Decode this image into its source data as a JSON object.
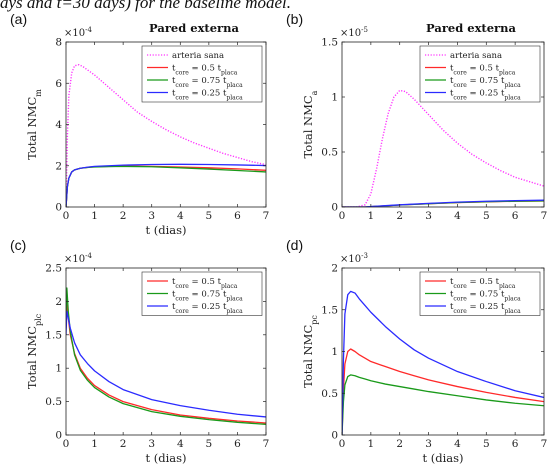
{
  "caption_fragment": "ays and t=30 days) for the baseline model.",
  "chart_data": [
    {
      "type": "line",
      "panel_letter": "(a)",
      "title": "Pared externa",
      "xlabel": "t (dias)",
      "ylabel": "Total NMC",
      "ylabel_sub": "m",
      "multiplier": "×10",
      "multiplier_exp": "-4",
      "xlim": [
        0,
        7
      ],
      "ylim": [
        0,
        8
      ],
      "xticks": [
        0,
        1,
        2,
        3,
        4,
        5,
        6,
        7
      ],
      "yticks": [
        0,
        2,
        4,
        6,
        8
      ],
      "legend_position": "top-right",
      "series": [
        {
          "name": "arteria sana",
          "color": "#ff33ff",
          "dash": "dotted",
          "x": [
            0,
            0.05,
            0.1,
            0.2,
            0.3,
            0.45,
            0.6,
            0.8,
            1,
            1.5,
            2,
            2.5,
            3,
            3.5,
            4,
            4.5,
            5,
            5.5,
            6,
            6.5,
            7
          ],
          "y": [
            0,
            3.5,
            5.4,
            6.5,
            6.85,
            6.9,
            6.8,
            6.6,
            6.4,
            5.8,
            5.2,
            4.6,
            4.15,
            3.75,
            3.4,
            3.1,
            2.85,
            2.6,
            2.4,
            2.2,
            2.05
          ]
        },
        {
          "name": "t_core = 0.5 t_placa",
          "color": "#ff2a2a",
          "dash": "solid",
          "x": [
            0,
            0.05,
            0.1,
            0.2,
            0.3,
            0.5,
            0.8,
            1,
            1.5,
            2,
            3,
            4,
            5,
            6,
            7
          ],
          "y": [
            0,
            1.0,
            1.4,
            1.7,
            1.8,
            1.88,
            1.93,
            1.95,
            1.97,
            1.98,
            1.97,
            1.94,
            1.9,
            1.85,
            1.78
          ]
        },
        {
          "name": "t_core = 0.75 t_placa",
          "color": "#1a9a1a",
          "dash": "solid",
          "x": [
            0,
            0.05,
            0.1,
            0.2,
            0.3,
            0.5,
            0.8,
            1,
            1.5,
            2,
            3,
            4,
            5,
            6,
            7
          ],
          "y": [
            0,
            1.0,
            1.4,
            1.7,
            1.8,
            1.88,
            1.92,
            1.94,
            1.96,
            1.97,
            1.95,
            1.9,
            1.84,
            1.77,
            1.7
          ]
        },
        {
          "name": "t_core = 0.25 t_placa",
          "color": "#2b2bff",
          "dash": "solid",
          "x": [
            0,
            0.05,
            0.1,
            0.2,
            0.3,
            0.5,
            0.8,
            1,
            1.5,
            2,
            3,
            4,
            5,
            6,
            7
          ],
          "y": [
            0,
            1.0,
            1.4,
            1.7,
            1.8,
            1.88,
            1.94,
            1.97,
            2.0,
            2.03,
            2.06,
            2.07,
            2.06,
            2.04,
            2.01
          ]
        }
      ]
    },
    {
      "type": "line",
      "panel_letter": "(b)",
      "title": "Pared externa",
      "xlabel": "",
      "ylabel": "Total NMC",
      "ylabel_sub": "a",
      "multiplier": "×10",
      "multiplier_exp": "-5",
      "xlim": [
        0,
        7
      ],
      "ylim": [
        0,
        1.5
      ],
      "xticks": [
        0,
        1,
        2,
        3,
        4,
        5,
        6,
        7
      ],
      "yticks": [
        0,
        0.5,
        1,
        1.5
      ],
      "legend_position": "top-right",
      "series": [
        {
          "name": "arteria sana",
          "color": "#ff33ff",
          "dash": "dotted",
          "x": [
            0,
            0.5,
            0.8,
            1,
            1.2,
            1.4,
            1.6,
            1.8,
            2,
            2.2,
            2.5,
            3,
            3.5,
            4,
            4.5,
            5,
            5.5,
            6,
            6.5,
            7
          ],
          "y": [
            0,
            0.0,
            0.02,
            0.12,
            0.35,
            0.62,
            0.85,
            1.0,
            1.06,
            1.05,
            0.98,
            0.84,
            0.7,
            0.58,
            0.48,
            0.4,
            0.33,
            0.27,
            0.23,
            0.19
          ]
        },
        {
          "name": "t_core = 0.5 t_placa",
          "color": "#ff2a2a",
          "dash": "solid",
          "x": [
            0,
            0.8,
            1,
            1.5,
            2,
            3,
            4,
            5,
            6,
            7
          ],
          "y": [
            0,
            0.0,
            0.003,
            0.01,
            0.018,
            0.03,
            0.04,
            0.047,
            0.052,
            0.055
          ]
        },
        {
          "name": "t_core = 0.75 t_placa",
          "color": "#1a9a1a",
          "dash": "solid",
          "x": [
            0,
            0.8,
            1,
            1.5,
            2,
            3,
            4,
            5,
            6,
            7
          ],
          "y": [
            0,
            0.0,
            0.003,
            0.01,
            0.018,
            0.03,
            0.041,
            0.048,
            0.053,
            0.056
          ]
        },
        {
          "name": "t_core = 0.25 t_placa",
          "color": "#2b2bff",
          "dash": "solid",
          "x": [
            0,
            0.8,
            1,
            1.5,
            2,
            3,
            4,
            5,
            6,
            7
          ],
          "y": [
            0,
            0.0,
            0.004,
            0.012,
            0.02,
            0.033,
            0.044,
            0.052,
            0.058,
            0.062
          ]
        }
      ]
    },
    {
      "type": "line",
      "panel_letter": "(c)",
      "title": "",
      "xlabel": "t (dias)",
      "ylabel": "Total NMC",
      "ylabel_sub": "plc",
      "multiplier": "×10",
      "multiplier_exp": "-4",
      "xlim": [
        0,
        7
      ],
      "ylim": [
        0,
        2.5
      ],
      "xticks": [
        0,
        1,
        2,
        3,
        4,
        5,
        6,
        7
      ],
      "yticks": [
        0,
        0.5,
        1,
        1.5,
        2,
        2.5
      ],
      "legend_position": "top-right",
      "series": [
        {
          "name": "t_core = 0.5 t_placa",
          "color": "#ff2a2a",
          "dash": "solid",
          "x": [
            0,
            0.03,
            0.08,
            0.15,
            0.3,
            0.5,
            0.75,
            1,
            1.5,
            2,
            3,
            4,
            5,
            6,
            7
          ],
          "y": [
            1.6,
            1.95,
            1.75,
            1.5,
            1.22,
            1.0,
            0.85,
            0.74,
            0.6,
            0.5,
            0.38,
            0.3,
            0.25,
            0.21,
            0.18
          ]
        },
        {
          "name": "t_core = 0.75 t_placa",
          "color": "#1a9a1a",
          "dash": "solid",
          "x": [
            0,
            0.03,
            0.08,
            0.15,
            0.3,
            0.5,
            0.75,
            1,
            1.5,
            2,
            3,
            4,
            5,
            6,
            7
          ],
          "y": [
            1.7,
            2.2,
            1.85,
            1.55,
            1.2,
            0.97,
            0.82,
            0.71,
            0.57,
            0.47,
            0.35,
            0.28,
            0.23,
            0.19,
            0.16
          ]
        },
        {
          "name": "t_core = 0.25 t_placa",
          "color": "#2b2bff",
          "dash": "solid",
          "x": [
            0,
            0.03,
            0.08,
            0.15,
            0.3,
            0.5,
            0.75,
            1,
            1.5,
            2,
            3,
            4,
            5,
            6,
            7
          ],
          "y": [
            1.5,
            1.85,
            1.75,
            1.6,
            1.38,
            1.2,
            1.07,
            0.96,
            0.8,
            0.68,
            0.53,
            0.44,
            0.37,
            0.31,
            0.27
          ]
        }
      ]
    },
    {
      "type": "line",
      "panel_letter": "(d)",
      "title": "",
      "xlabel": "t (dias)",
      "ylabel": "Total NMC",
      "ylabel_sub": "pc",
      "multiplier": "×10",
      "multiplier_exp": "-3",
      "xlim": [
        0,
        7
      ],
      "ylim": [
        0,
        2
      ],
      "xticks": [
        0,
        1,
        2,
        3,
        4,
        5,
        6,
        7
      ],
      "yticks": [
        0,
        0.5,
        1,
        1.5,
        2
      ],
      "legend_position": "top-right",
      "series": [
        {
          "name": "t_core = 0.5 t_placa",
          "color": "#ff2a2a",
          "dash": "solid",
          "x": [
            0,
            0.05,
            0.1,
            0.2,
            0.3,
            0.45,
            0.6,
            0.8,
            1,
            1.5,
            2,
            2.5,
            3,
            4,
            5,
            6,
            7
          ],
          "y": [
            0,
            0.55,
            0.85,
            1.0,
            1.03,
            1.0,
            0.96,
            0.92,
            0.88,
            0.82,
            0.76,
            0.71,
            0.66,
            0.58,
            0.51,
            0.45,
            0.4
          ]
        },
        {
          "name": "t_core = 0.75 t_placa",
          "color": "#1a9a1a",
          "dash": "solid",
          "x": [
            0,
            0.05,
            0.1,
            0.2,
            0.3,
            0.45,
            0.6,
            0.8,
            1,
            1.5,
            2,
            2.5,
            3,
            4,
            5,
            6,
            7
          ],
          "y": [
            0,
            0.4,
            0.6,
            0.7,
            0.72,
            0.71,
            0.69,
            0.67,
            0.65,
            0.61,
            0.58,
            0.55,
            0.52,
            0.47,
            0.42,
            0.38,
            0.35
          ]
        },
        {
          "name": "t_core = 0.25 t_placa",
          "color": "#2b2bff",
          "dash": "solid",
          "x": [
            0,
            0.05,
            0.1,
            0.2,
            0.3,
            0.45,
            0.6,
            0.8,
            1,
            1.5,
            2,
            2.5,
            3,
            4,
            5,
            6,
            7
          ],
          "y": [
            0,
            0.9,
            1.45,
            1.68,
            1.72,
            1.7,
            1.63,
            1.55,
            1.47,
            1.3,
            1.15,
            1.02,
            0.92,
            0.76,
            0.64,
            0.53,
            0.45
          ]
        }
      ]
    }
  ]
}
